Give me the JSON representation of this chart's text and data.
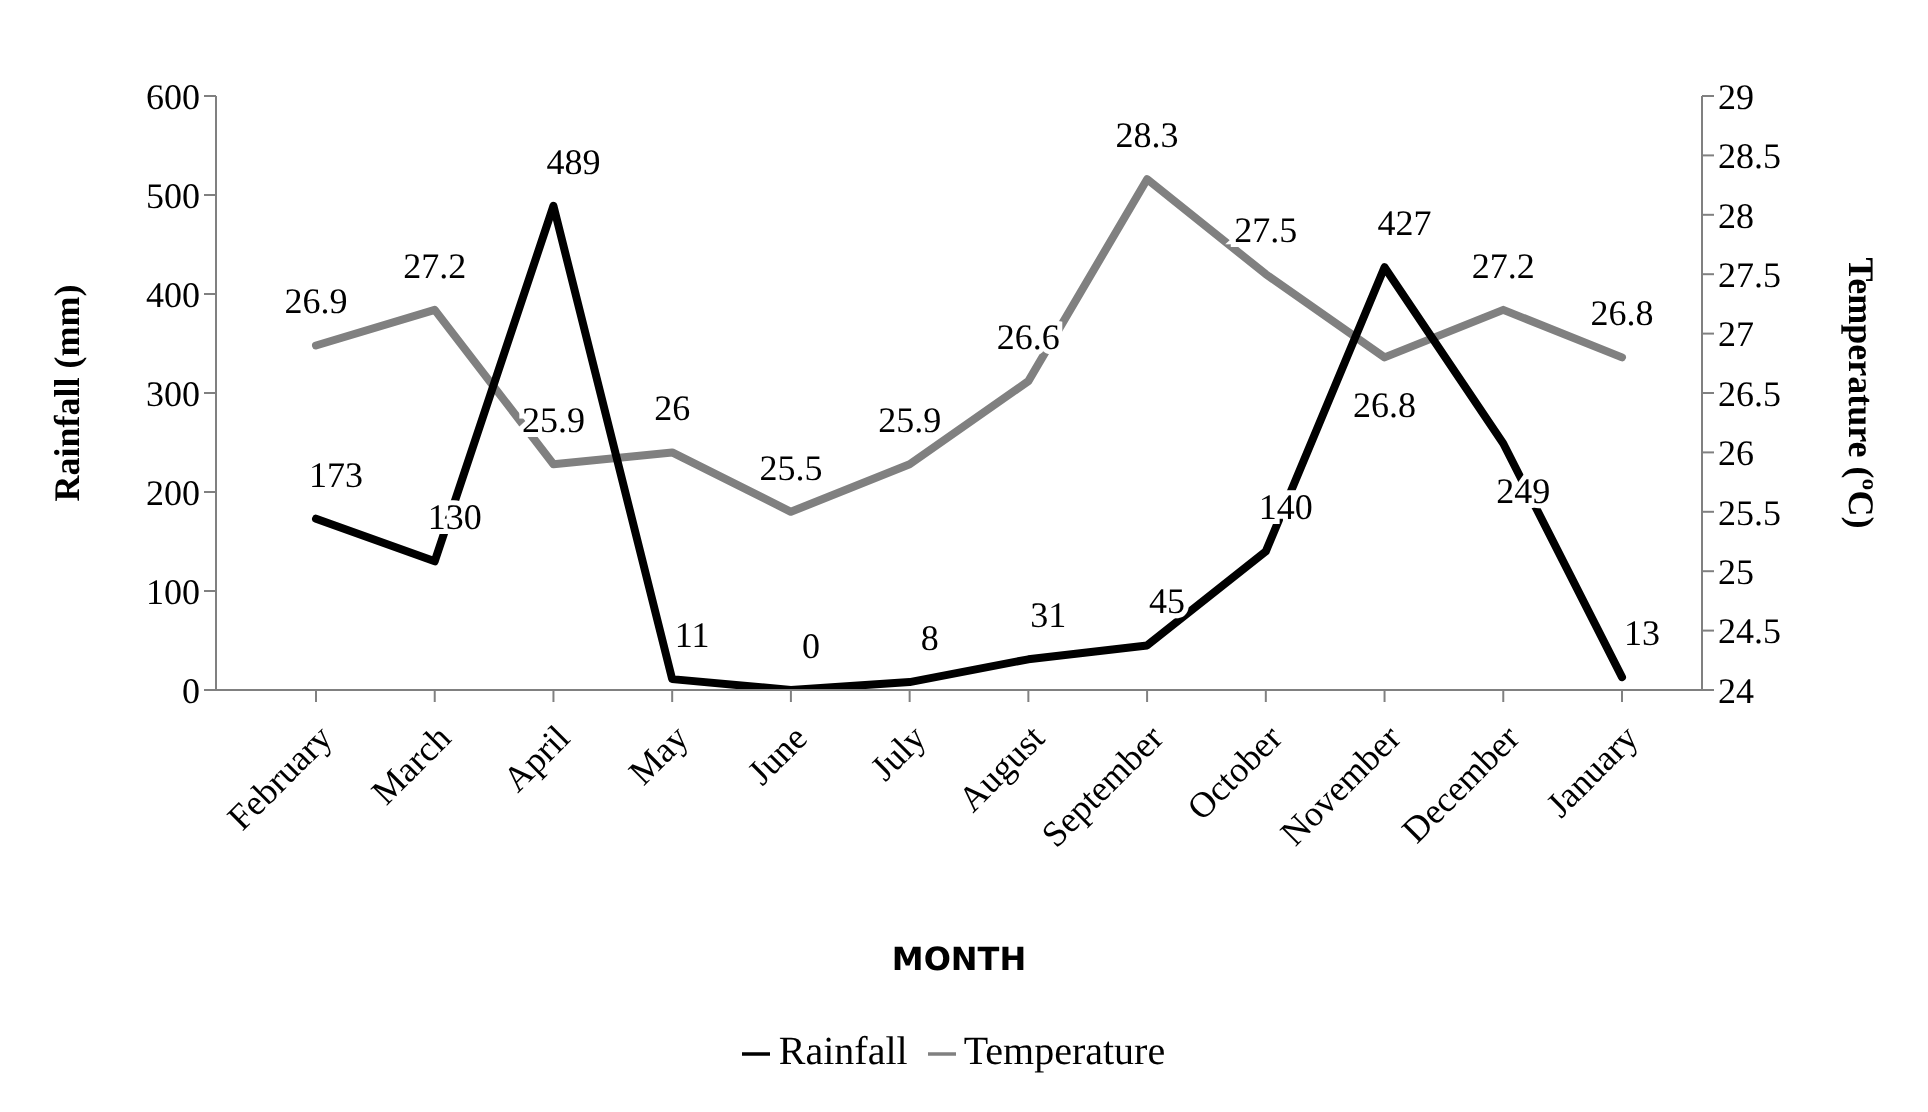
{
  "chart_data": {
    "type": "line",
    "xlabel": "MONTH",
    "ylabel": "Rainfall (mm)",
    "y2label": "Temperature (ºC)",
    "categories": [
      "February",
      "March",
      "April",
      "May",
      "June",
      "July",
      "August",
      "September",
      "October",
      "November",
      "December",
      "January"
    ],
    "series": [
      {
        "name": "Rainfall",
        "color": "#000000",
        "values": [
          173,
          130,
          489,
          11,
          0,
          8,
          31,
          45,
          140,
          427,
          249,
          13
        ]
      },
      {
        "name": "Temperature",
        "color": "#808080",
        "axis": "y2",
        "values": [
          26.9,
          27.2,
          25.9,
          26,
          25.5,
          25.9,
          26.6,
          28.3,
          27.5,
          26.8,
          27.2,
          26.8
        ]
      }
    ],
    "ylim": [
      0,
      600
    ],
    "yticks": [
      0,
      100,
      200,
      300,
      400,
      500,
      600
    ],
    "y2lim": [
      24,
      29
    ],
    "y2ticks": [
      24,
      24.5,
      25,
      25.5,
      26,
      26.5,
      27,
      27.5,
      28,
      28.5,
      29
    ],
    "data_labels": true,
    "grid": false,
    "legend": "bottom",
    "marker": "none",
    "line_style": "solid"
  }
}
